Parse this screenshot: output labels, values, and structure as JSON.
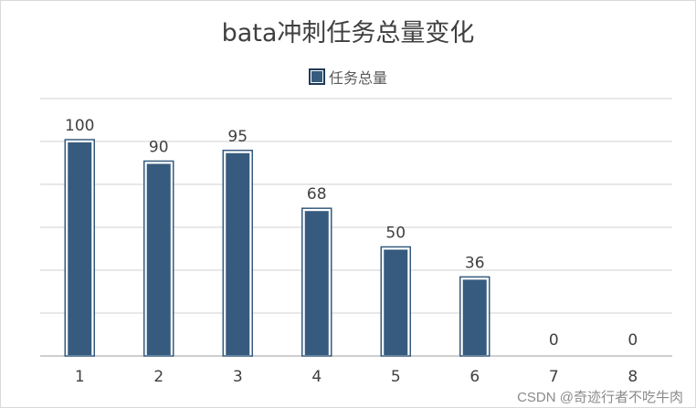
{
  "chart_data": {
    "type": "bar",
    "title": "bata冲刺任务总量变化",
    "categories": [
      "1",
      "2",
      "3",
      "4",
      "5",
      "6",
      "7",
      "8"
    ],
    "series": [
      {
        "name": "任务总量",
        "values": [
          100,
          90,
          95,
          68,
          50,
          36,
          0,
          0
        ]
      }
    ],
    "data_labels": [
      "100",
      "90",
      "95",
      "68",
      "50",
      "36",
      "0",
      "0"
    ],
    "ylim": [
      0,
      120
    ],
    "grid": true,
    "legend": "top-center",
    "bar_color": "#365b7e"
  },
  "watermark": "CSDN @奇迹行者不吃牛肉"
}
